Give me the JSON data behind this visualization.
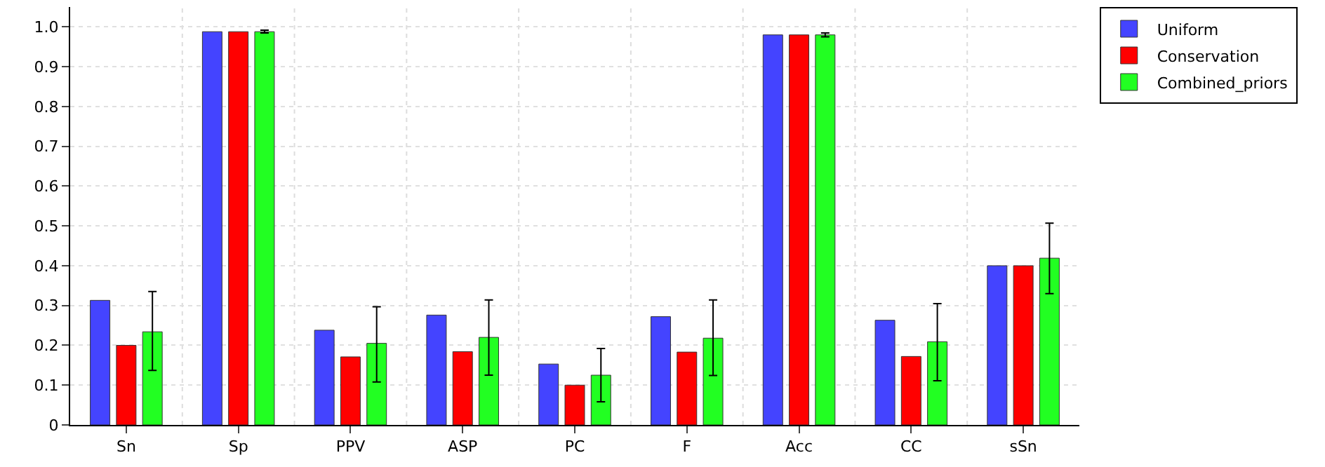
{
  "chart_data": {
    "type": "bar",
    "categories": [
      "Sn",
      "Sp",
      "PPV",
      "ASP",
      "PC",
      "F",
      "Acc",
      "CC",
      "sSn"
    ],
    "series": [
      {
        "name": "Uniform",
        "color": "#4444ff",
        "values": [
          0.313,
          0.988,
          0.238,
          0.276,
          0.153,
          0.272,
          0.98,
          0.263,
          0.4
        ]
      },
      {
        "name": "Conservation",
        "color": "#ff0000",
        "values": [
          0.2,
          0.988,
          0.171,
          0.184,
          0.1,
          0.183,
          0.98,
          0.172,
          0.4
        ]
      },
      {
        "name": "Combined_priors",
        "color": "#22ff22",
        "values": [
          0.234,
          0.988,
          0.205,
          0.22,
          0.125,
          0.218,
          0.98,
          0.209,
          0.419
        ],
        "errors": [
          [
            0.137,
            0.335
          ],
          [
            0.985,
            0.992
          ],
          [
            0.108,
            0.297
          ],
          [
            0.125,
            0.314
          ],
          [
            0.058,
            0.192
          ],
          [
            0.124,
            0.314
          ],
          [
            0.975,
            0.985
          ],
          [
            0.111,
            0.305
          ],
          [
            0.33,
            0.507
          ]
        ]
      }
    ],
    "ylim": [
      0,
      1.05
    ],
    "yticks": [
      {
        "value": 0,
        "label": "0"
      },
      {
        "value": 0.1,
        "label": "0.1"
      },
      {
        "value": 0.2,
        "label": "0.2"
      },
      {
        "value": 0.3,
        "label": "0.3"
      },
      {
        "value": 0.4,
        "label": "0.4"
      },
      {
        "value": 0.5,
        "label": "0.5"
      },
      {
        "value": 0.6,
        "label": "0.6"
      },
      {
        "value": 0.7,
        "label": "0.7"
      },
      {
        "value": 0.8,
        "label": "0.8"
      },
      {
        "value": 0.9,
        "label": "0.9"
      },
      {
        "value": 1.0,
        "label": "1.0"
      }
    ],
    "grid": true,
    "legend": "top right"
  }
}
